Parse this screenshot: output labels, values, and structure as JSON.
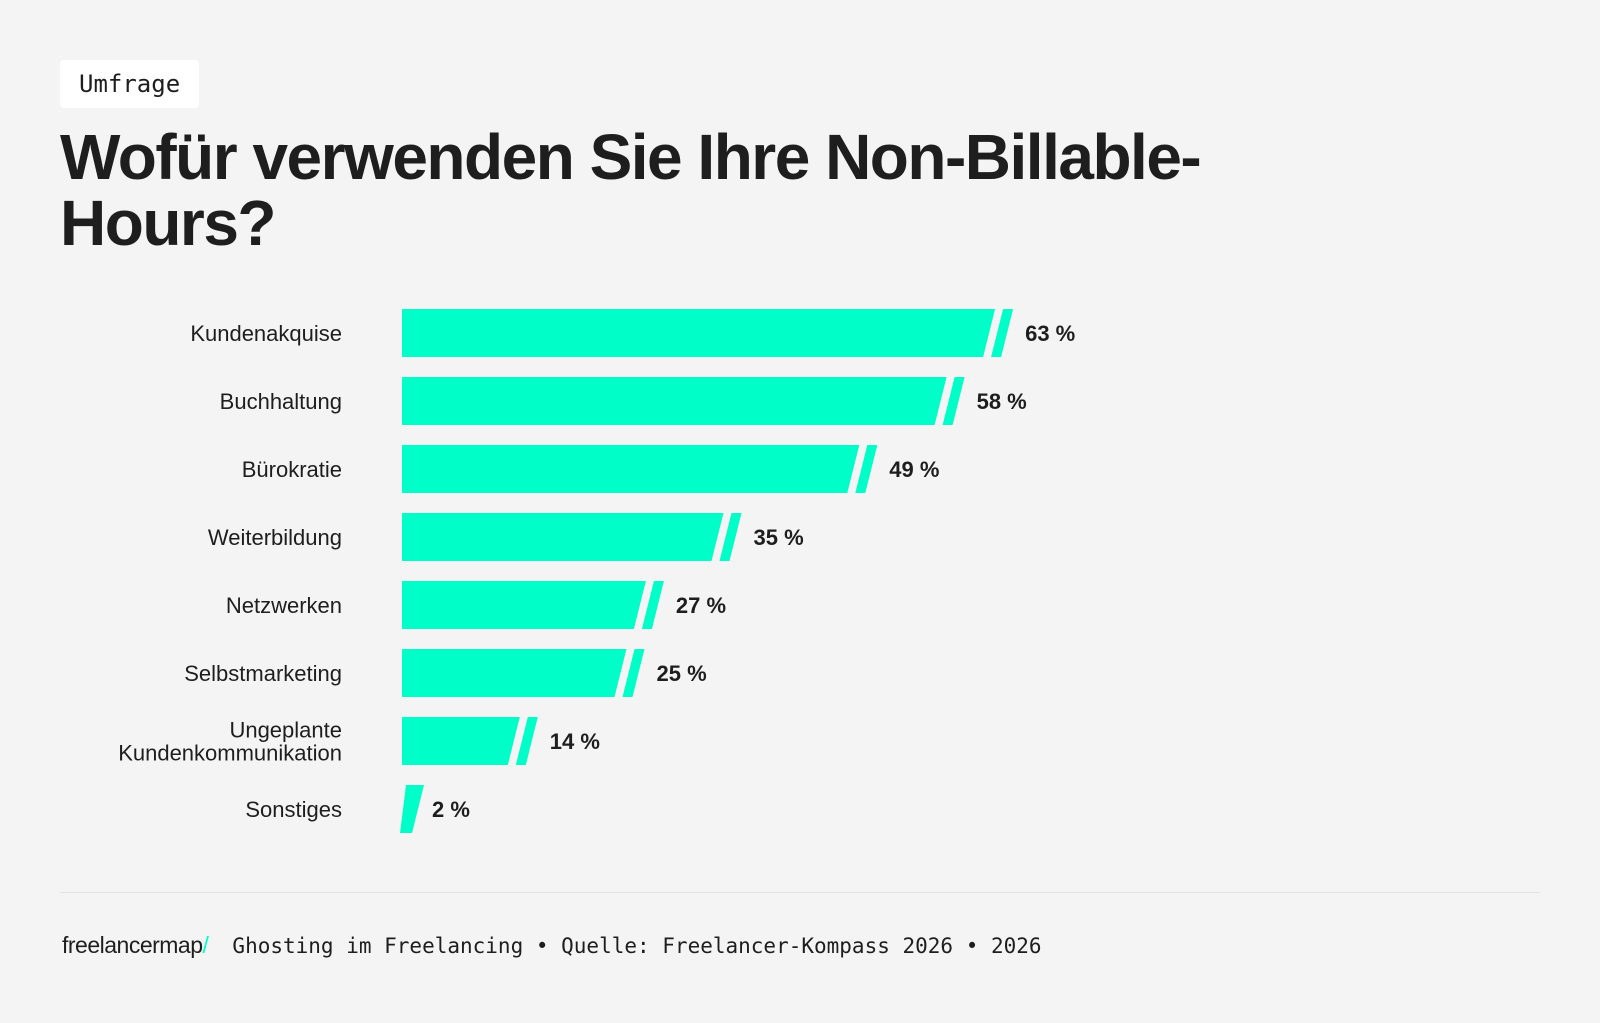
{
  "badge": "Umfrage",
  "title": "Wofür verwenden Sie Ihre Non-Billable-Hours?",
  "chart_data": {
    "type": "bar",
    "orientation": "horizontal",
    "categories": [
      "Kundenakquise",
      "Buchhaltung",
      "Bürokratie",
      "Weiterbildung",
      "Netzwerken",
      "Selbstmarketing",
      "Ungeplante Kundenkommunikation",
      "Sonstiges"
    ],
    "values": [
      63,
      58,
      49,
      35,
      27,
      25,
      14,
      2
    ],
    "value_labels": [
      "63 %",
      "58 %",
      "49 %",
      "35 %",
      "27 %",
      "25 %",
      "14 %",
      "2 %"
    ],
    "unit": "%",
    "bar_color": "#00ffc8",
    "grid": false
  },
  "footer": {
    "logo": "freelancermap",
    "logo_slash": "/",
    "source": "Ghosting im Freelancing • Quelle: Freelancer-Kompass 2026 • 2026"
  }
}
